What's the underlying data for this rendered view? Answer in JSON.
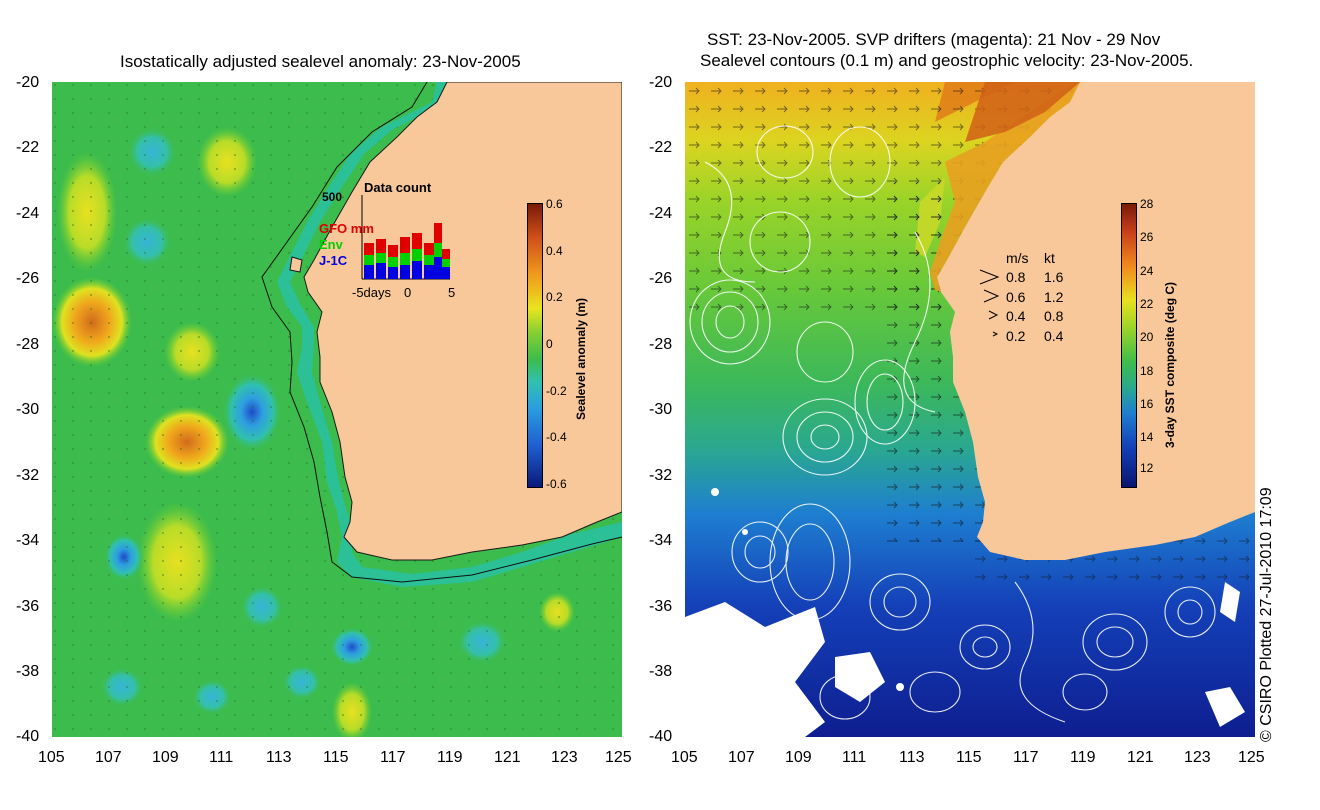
{
  "left_panel": {
    "title": "Isostatically adjusted sealevel anomaly: 23-Nov-2005",
    "y_ticks": [
      "-20",
      "-22",
      "-24",
      "-26",
      "-28",
      "-30",
      "-32",
      "-34",
      "-36",
      "-38",
      "-40"
    ],
    "x_ticks": [
      "105",
      "107",
      "109",
      "111",
      "113",
      "115",
      "117",
      "119",
      "121",
      "123",
      "125"
    ],
    "colorbar": {
      "label": "Sealevel anomaly (m)",
      "ticks": [
        "0.6",
        "0.4",
        "0.2",
        "0",
        "-0.2",
        "-0.4",
        "-0.6"
      ]
    },
    "data_count": {
      "title": "Data count",
      "max_label": "500",
      "series": [
        {
          "name": "GFO mm",
          "color": "#e00000"
        },
        {
          "name": "Env",
          "color": "#00d000"
        },
        {
          "name": "J-1C",
          "color": "#0000e0"
        }
      ],
      "x_labels": [
        "-5days",
        "0",
        "5"
      ]
    }
  },
  "right_panel": {
    "title_line1": "SST: 23-Nov-2005. SVP drifters (magenta): 21 Nov - 29 Nov",
    "title_line2": "Sealevel contours (0.1 m) and geostrophic velocity: 23-Nov-2005.",
    "y_ticks": [
      "-20",
      "-22",
      "-24",
      "-26",
      "-28",
      "-30",
      "-32",
      "-34",
      "-36",
      "-38",
      "-40"
    ],
    "x_ticks": [
      "105",
      "107",
      "109",
      "111",
      "113",
      "115",
      "117",
      "119",
      "121",
      "123",
      "125"
    ],
    "colorbar": {
      "label": "3-day SST composite (deg C)",
      "ticks": [
        "28",
        "26",
        "24",
        "22",
        "20",
        "18",
        "16",
        "14",
        "12"
      ]
    },
    "velocity_legend": {
      "header_ms": "m/s",
      "header_kt": "kt",
      "rows": [
        {
          "ms": "0.8",
          "kt": "1.6"
        },
        {
          "ms": "0.6",
          "kt": "1.2"
        },
        {
          "ms": "0.4",
          "kt": "0.8"
        },
        {
          "ms": "0.2",
          "kt": "0.4"
        }
      ]
    }
  },
  "credit": "© CSIRO Plotted 27-Jul-2010 17:09",
  "colors": {
    "land": "#f9c89a",
    "sea_green": "#3cbc4c"
  }
}
